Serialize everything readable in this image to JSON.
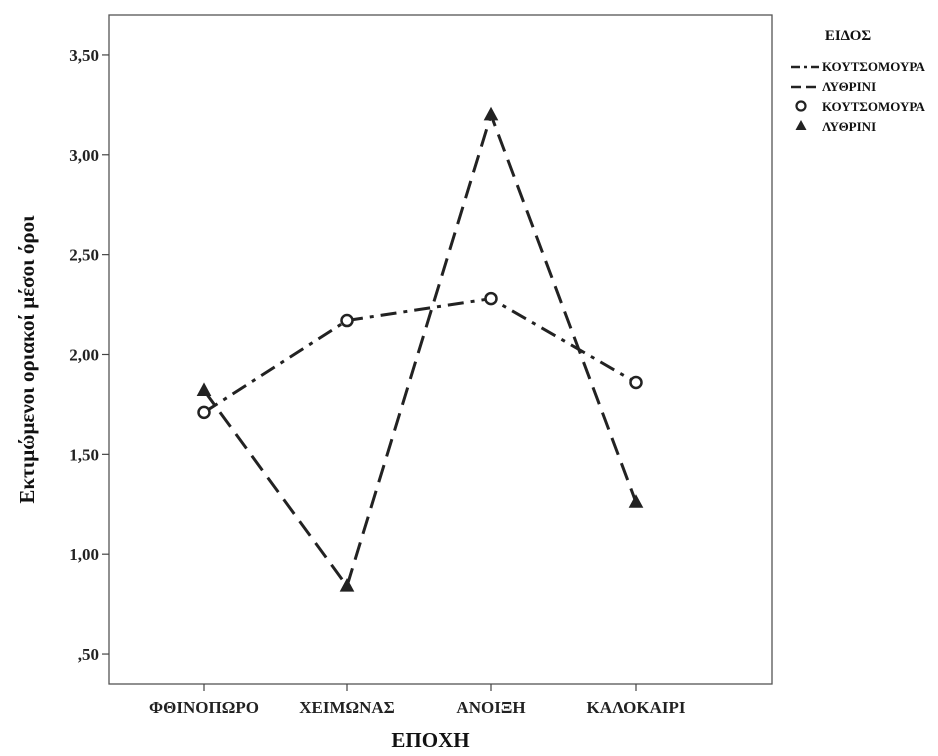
{
  "chart_data": {
    "type": "line",
    "xlabel": "ΕΠΟΧΗ",
    "ylabel": "Εκτιμώμενοι οριακοί μέσοι όροι",
    "categories": [
      "ΦΘΙΝΟΠΩΡΟ",
      "ΧΕΙΜΩΝΑΣ",
      "ΑΝΟΙΞΗ",
      "ΚΑΛΟΚΑΙΡΙ"
    ],
    "ylim": [
      0.35,
      3.7
    ],
    "yticks": [
      0.5,
      1.0,
      1.5,
      2.0,
      2.5,
      3.0,
      3.5
    ],
    "ytick_labels": [
      ",50",
      "1,00",
      "1,50",
      "2,00",
      "2,50",
      "3,00",
      "3,50"
    ],
    "grid": false,
    "legend": {
      "title": "ΕΙΔΟΣ",
      "placement": "outside-right",
      "entries": [
        {
          "label": "ΚΟΥΤΣΟΜΟΥΡΑ",
          "kind": "line",
          "style": "dash-dot"
        },
        {
          "label": "ΛΥΘΡΙΝΙ",
          "kind": "line",
          "style": "dashed"
        },
        {
          "label": "ΚΟΥΤΣΟΜΟΥΡΑ",
          "kind": "marker",
          "marker": "circle"
        },
        {
          "label": "ΛΥΘΡΙΝΙ",
          "kind": "marker",
          "marker": "triangle"
        }
      ]
    },
    "series": [
      {
        "name": "ΚΟΥΤΣΟΜΟΥΡΑ",
        "values": [
          1.71,
          2.17,
          2.28,
          1.86
        ],
        "line_style": "dash-dot",
        "marker": "circle"
      },
      {
        "name": "ΛΥΘΡΙΝΙ",
        "values": [
          1.82,
          0.84,
          3.2,
          1.26
        ],
        "line_style": "dashed",
        "marker": "triangle"
      }
    ],
    "colors": {
      "line": "#222222",
      "frame": "#555555"
    }
  }
}
